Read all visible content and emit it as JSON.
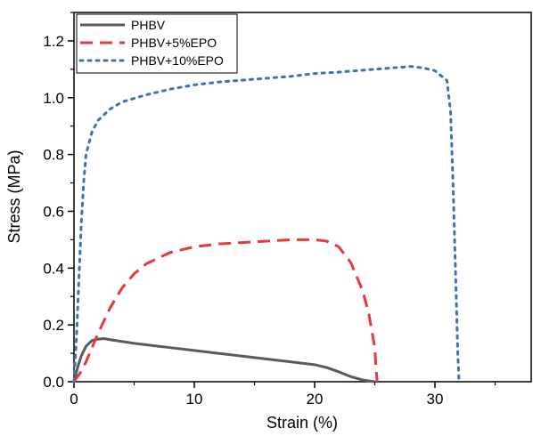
{
  "chart_data": {
    "type": "line",
    "xlabel": "Strain (%)",
    "ylabel": "Stress (MPa)",
    "xlim": [
      0,
      38
    ],
    "ylim": [
      0,
      1.3
    ],
    "xticks": [
      0,
      10,
      20,
      30
    ],
    "xtick_labels": [
      "0",
      "10",
      "20",
      "30"
    ],
    "yticks": [
      0.0,
      0.2,
      0.4,
      0.6,
      0.8,
      1.0,
      1.2
    ],
    "ytick_labels": [
      "0.0",
      "0.2",
      "0.4",
      "0.6",
      "0.8",
      "1.0",
      "1.2"
    ],
    "grid": false,
    "legend_position": "top-left",
    "series": [
      {
        "name": "PHBV",
        "color": "#5a5a5a",
        "style": "solid",
        "x": [
          0,
          0.3,
          0.6,
          1.0,
          1.5,
          2.0,
          2.5,
          3,
          5,
          8,
          10,
          12,
          15,
          18,
          20,
          21,
          22,
          23,
          24,
          25
        ],
        "y": [
          0,
          0.05,
          0.09,
          0.125,
          0.145,
          0.15,
          0.152,
          0.148,
          0.135,
          0.12,
          0.11,
          0.1,
          0.085,
          0.07,
          0.06,
          0.05,
          0.035,
          0.018,
          0.006,
          0
        ]
      },
      {
        "name": "PHBV+5%EPO",
        "color": "#e8383b",
        "style": "dashed",
        "x": [
          0,
          0.5,
          1,
          1.5,
          2,
          3,
          4,
          5,
          6,
          8,
          10,
          12,
          14,
          16,
          18,
          20,
          21,
          22,
          23,
          24,
          24.5,
          25,
          25.1,
          25.2
        ],
        "y": [
          0,
          0.03,
          0.07,
          0.12,
          0.17,
          0.26,
          0.33,
          0.38,
          0.415,
          0.455,
          0.475,
          0.485,
          0.49,
          0.495,
          0.5,
          0.5,
          0.495,
          0.475,
          0.42,
          0.32,
          0.24,
          0.12,
          0.05,
          0
        ]
      },
      {
        "name": "PHBV+10%EPO",
        "color": "#3f6fc0",
        "style": "dotted",
        "x": [
          0,
          0.2,
          0.4,
          0.6,
          0.8,
          1.0,
          1.5,
          2,
          3,
          4,
          6,
          8,
          10,
          12,
          15,
          18,
          20,
          22,
          25,
          28,
          29,
          30,
          31,
          31.3,
          31.5,
          31.7,
          31.9,
          32
        ],
        "y": [
          0,
          0.15,
          0.35,
          0.55,
          0.7,
          0.8,
          0.88,
          0.92,
          0.96,
          0.985,
          1.01,
          1.03,
          1.045,
          1.055,
          1.065,
          1.075,
          1.085,
          1.09,
          1.1,
          1.11,
          1.105,
          1.095,
          1.06,
          0.95,
          0.7,
          0.4,
          0.1,
          0
        ]
      }
    ]
  }
}
